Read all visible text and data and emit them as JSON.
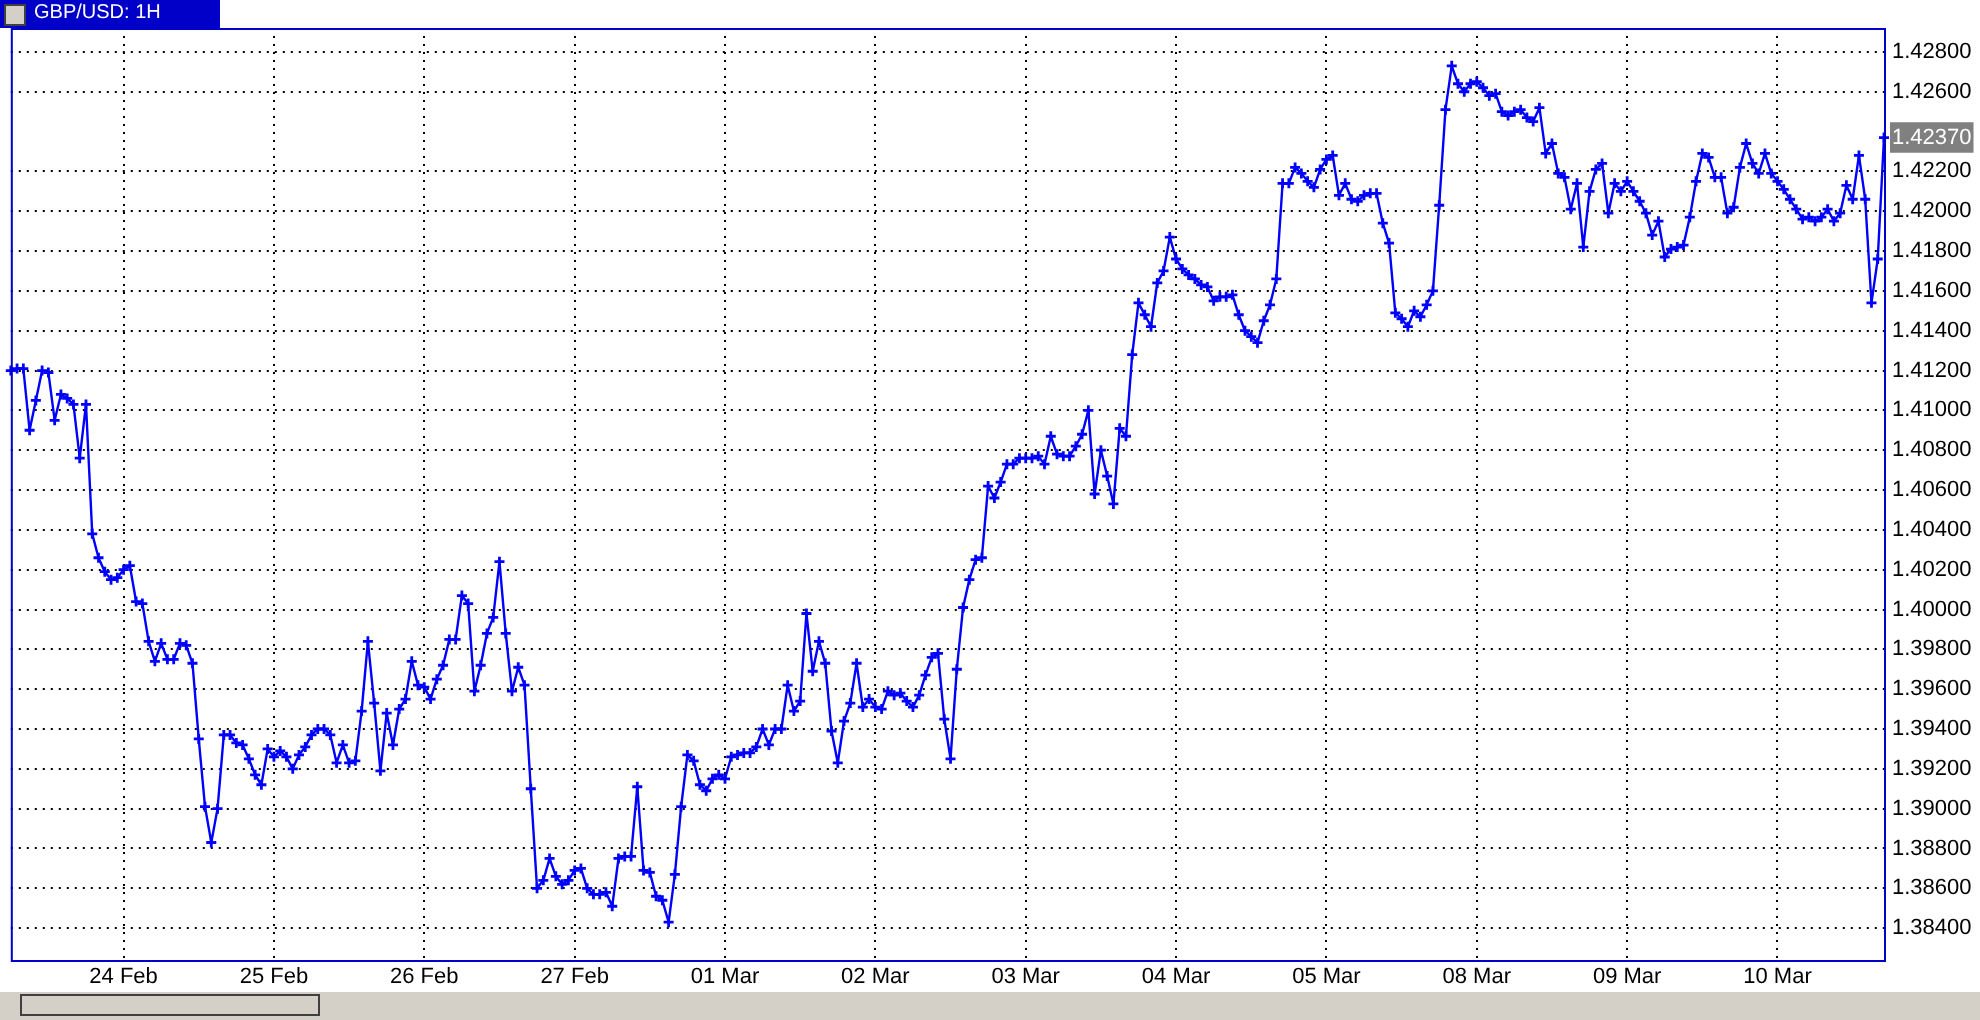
{
  "chart_data": {
    "type": "line",
    "title": "GBP/USD: 1H",
    "categories": [
      null,
      null,
      null,
      null,
      null,
      null,
      null,
      null,
      null,
      null,
      null,
      null,
      null,
      null,
      null,
      null,
      null,
      null,
      "24 Feb",
      null,
      null,
      null,
      null,
      null,
      null,
      null,
      null,
      null,
      null,
      null,
      null,
      null,
      null,
      null,
      null,
      null,
      null,
      null,
      null,
      null,
      null,
      null,
      "25 Feb",
      null,
      null,
      null,
      null,
      null,
      null,
      null,
      null,
      null,
      null,
      null,
      null,
      null,
      null,
      null,
      null,
      null,
      null,
      null,
      null,
      null,
      null,
      null,
      "26 Feb",
      null,
      null,
      null,
      null,
      null,
      null,
      null,
      null,
      null,
      null,
      null,
      null,
      null,
      null,
      null,
      null,
      null,
      null,
      null,
      null,
      null,
      null,
      null,
      "27 Feb",
      null,
      null,
      null,
      null,
      null,
      null,
      null,
      null,
      null,
      null,
      null,
      null,
      null,
      null,
      null,
      null,
      null,
      null,
      null,
      null,
      null,
      null,
      null,
      "01 Mar",
      null,
      null,
      null,
      null,
      null,
      null,
      null,
      null,
      null,
      null,
      null,
      null,
      null,
      null,
      null,
      null,
      null,
      null,
      null,
      null,
      null,
      null,
      null,
      "02 Mar",
      null,
      null,
      null,
      null,
      null,
      null,
      null,
      null,
      null,
      null,
      null,
      null,
      null,
      null,
      null,
      null,
      null,
      null,
      null,
      null,
      null,
      null,
      null,
      "03 Mar",
      null,
      null,
      null,
      null,
      null,
      null,
      null,
      null,
      null,
      null,
      null,
      null,
      null,
      null,
      null,
      null,
      null,
      null,
      null,
      null,
      null,
      null,
      null,
      "04 Mar",
      null,
      null,
      null,
      null,
      null,
      null,
      null,
      null,
      null,
      null,
      null,
      null,
      null,
      null,
      null,
      null,
      null,
      null,
      null,
      null,
      null,
      null,
      null,
      "05 Mar",
      null,
      null,
      null,
      null,
      null,
      null,
      null,
      null,
      null,
      null,
      null,
      null,
      null,
      null,
      null,
      null,
      null,
      null,
      null,
      null,
      null,
      null,
      null,
      "08 Mar",
      null,
      null,
      null,
      null,
      null,
      null,
      null,
      null,
      null,
      null,
      null,
      null,
      null,
      null,
      null,
      null,
      null,
      null,
      null,
      null,
      null,
      null,
      null,
      "09 Mar",
      null,
      null,
      null,
      null,
      null,
      null,
      null,
      null,
      null,
      null,
      null,
      null,
      null,
      null,
      null,
      null,
      null,
      null,
      null,
      null,
      null,
      null,
      null,
      "10 Mar",
      null,
      null,
      null,
      null,
      null,
      null,
      null,
      null,
      null,
      null,
      null,
      null,
      null,
      null,
      null,
      null,
      null
    ],
    "series": [
      {
        "color": "#0000ff",
        "values": [
          1.412,
          1.4121,
          1.4121,
          1.409,
          1.4105,
          1.412,
          1.4119,
          1.4095,
          1.4108,
          1.4106,
          1.4103,
          1.4076,
          1.4103,
          1.4038,
          1.4026,
          1.4019,
          1.4015,
          1.4016,
          1.402,
          1.4022,
          1.4004,
          1.4003,
          1.3984,
          1.3974,
          1.3983,
          1.3975,
          1.3975,
          1.3983,
          1.3982,
          1.3973,
          1.3935,
          1.3901,
          1.3883,
          1.39,
          1.3937,
          1.3937,
          1.3933,
          1.3932,
          1.3925,
          1.3917,
          1.3912,
          1.393,
          1.3926,
          1.3929,
          1.3926,
          1.392,
          1.3927,
          1.3931,
          1.3937,
          1.394,
          1.394,
          1.3937,
          1.3923,
          1.3932,
          1.3923,
          1.3924,
          1.3949,
          1.3984,
          1.3953,
          1.3919,
          1.3948,
          1.3932,
          1.395,
          1.3955,
          1.3974,
          1.3962,
          1.3961,
          1.3955,
          1.3965,
          1.3972,
          1.3985,
          1.3985,
          1.4007,
          1.4003,
          1.3959,
          1.3972,
          1.3988,
          1.3996,
          1.4024,
          1.3988,
          1.3959,
          1.3971,
          1.3962,
          1.391,
          1.386,
          1.3864,
          1.3875,
          1.3866,
          1.3862,
          1.3864,
          1.3869,
          1.387,
          1.386,
          1.3857,
          1.3857,
          1.3858,
          1.3851,
          1.3875,
          1.3876,
          1.3876,
          1.3911,
          1.3869,
          1.3868,
          1.3856,
          1.3854,
          1.3843,
          1.3867,
          1.3901,
          1.3927,
          1.3924,
          1.3912,
          1.3909,
          1.3915,
          1.3917,
          1.3915,
          1.3926,
          1.3927,
          1.3928,
          1.3928,
          1.3931,
          1.394,
          1.3932,
          1.394,
          1.394,
          1.3962,
          1.3949,
          1.3954,
          1.3998,
          1.3969,
          1.3984,
          1.3973,
          1.3939,
          1.3923,
          1.3944,
          1.3953,
          1.3973,
          1.3951,
          1.3955,
          1.3951,
          1.395,
          1.3959,
          1.3957,
          1.3958,
          1.3954,
          1.3951,
          1.3957,
          1.3967,
          1.3976,
          1.3978,
          1.3945,
          1.3925,
          1.397,
          1.4001,
          1.4015,
          1.4025,
          1.4026,
          1.4062,
          1.4056,
          1.4064,
          1.4073,
          1.4073,
          1.4076,
          1.4076,
          1.4076,
          1.4077,
          1.4073,
          1.4087,
          1.4078,
          1.4077,
          1.4077,
          1.4082,
          1.4088,
          1.41,
          1.4058,
          1.408,
          1.4067,
          1.4053,
          1.4091,
          1.4087,
          1.4128,
          1.4154,
          1.4148,
          1.4142,
          1.4164,
          1.417,
          1.4187,
          1.4176,
          1.4171,
          1.4168,
          1.4166,
          1.4163,
          1.4162,
          1.4155,
          1.4157,
          1.4157,
          1.4158,
          1.4148,
          1.414,
          1.4137,
          1.4134,
          1.4145,
          1.4153,
          1.4166,
          1.4214,
          1.4214,
          1.4222,
          1.4219,
          1.4215,
          1.4212,
          1.4221,
          1.4226,
          1.4228,
          1.4208,
          1.4214,
          1.4206,
          1.4205,
          1.4208,
          1.4209,
          1.4209,
          1.4194,
          1.4184,
          1.4149,
          1.4146,
          1.4142,
          1.415,
          1.4147,
          1.4153,
          1.416,
          1.4203,
          1.4251,
          1.4273,
          1.4264,
          1.426,
          1.4264,
          1.4265,
          1.4262,
          1.4258,
          1.4259,
          1.425,
          1.4248,
          1.425,
          1.4251,
          1.4247,
          1.4245,
          1.4252,
          1.4229,
          1.4234,
          1.4219,
          1.4217,
          1.4201,
          1.4214,
          1.4182,
          1.421,
          1.4221,
          1.4224,
          1.4199,
          1.4214,
          1.421,
          1.4215,
          1.421,
          1.4205,
          1.4199,
          1.4188,
          1.4195,
          1.4177,
          1.4181,
          1.4182,
          1.4183,
          1.4197,
          1.4215,
          1.4229,
          1.4227,
          1.4217,
          1.4217,
          1.4199,
          1.4202,
          1.4222,
          1.4234,
          1.4224,
          1.4219,
          1.4229,
          1.4219,
          1.4215,
          1.4211,
          1.4206,
          1.4201,
          1.4196,
          1.4197,
          1.4195,
          1.4197,
          1.4201,
          1.4195,
          1.4199,
          1.4213,
          1.4206,
          1.4228,
          1.4206,
          1.4154,
          1.4176,
          1.4237
        ]
      }
    ],
    "ylim": [
      1.3824,
      1.4292
    ],
    "yticks": [
      {
        "value": 1.384,
        "label": "1.38400"
      },
      {
        "value": 1.386,
        "label": "1.38600"
      },
      {
        "value": 1.388,
        "label": "1.38800"
      },
      {
        "value": 1.39,
        "label": "1.39000"
      },
      {
        "value": 1.392,
        "label": "1.39200"
      },
      {
        "value": 1.394,
        "label": "1.39400"
      },
      {
        "value": 1.396,
        "label": "1.39600"
      },
      {
        "value": 1.398,
        "label": "1.39800"
      },
      {
        "value": 1.4,
        "label": "1.40000"
      },
      {
        "value": 1.402,
        "label": "1.40200"
      },
      {
        "value": 1.404,
        "label": "1.40400"
      },
      {
        "value": 1.406,
        "label": "1.40600"
      },
      {
        "value": 1.408,
        "label": "1.40800"
      },
      {
        "value": 1.41,
        "label": "1.41000"
      },
      {
        "value": 1.412,
        "label": "1.41200"
      },
      {
        "value": 1.414,
        "label": "1.41400"
      },
      {
        "value": 1.416,
        "label": "1.41600"
      },
      {
        "value": 1.418,
        "label": "1.41800"
      },
      {
        "value": 1.42,
        "label": "1.42000"
      },
      {
        "value": 1.422,
        "label": "1.42200"
      },
      {
        "value": 1.4237,
        "label": "1.42370"
      },
      {
        "value": 1.426,
        "label": "1.42600"
      },
      {
        "value": 1.428,
        "label": "1.42800"
      }
    ],
    "grid": true,
    "marker": "cross",
    "line_style": "solid"
  }
}
